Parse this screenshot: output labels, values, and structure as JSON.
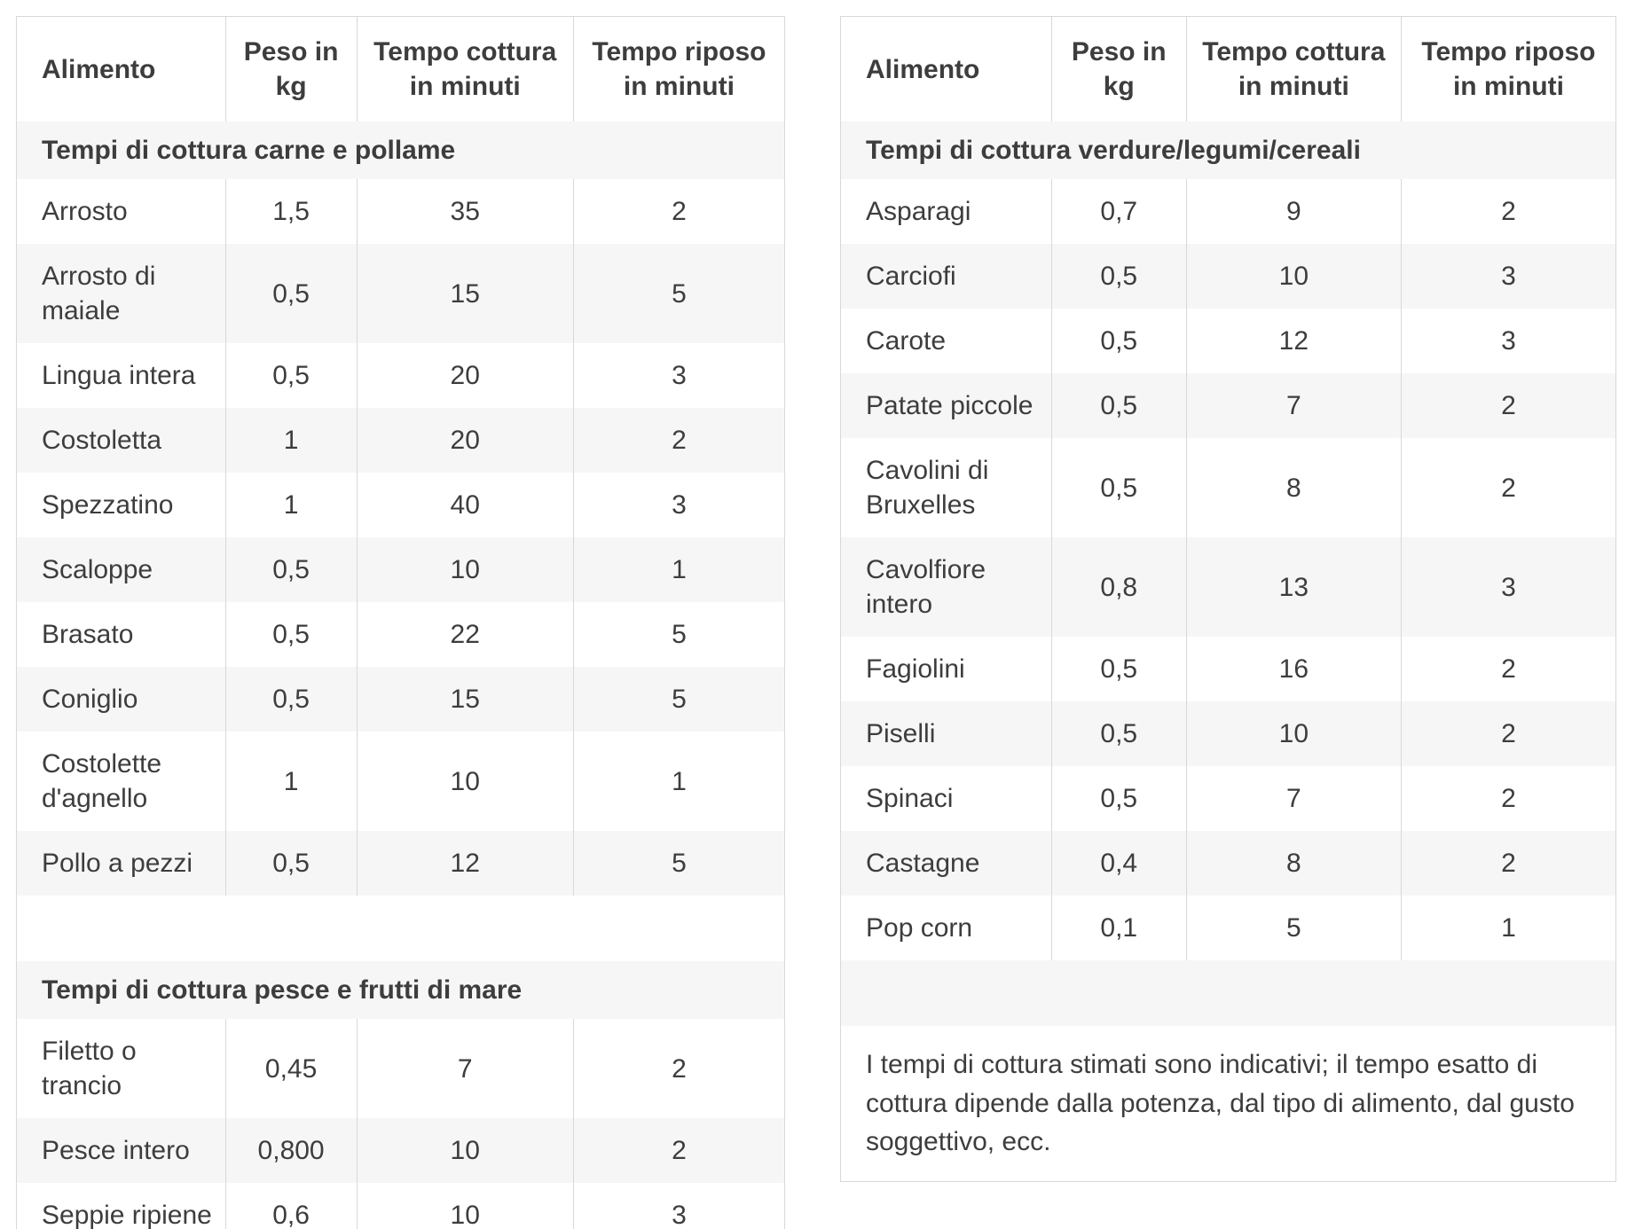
{
  "colors": {
    "text": "#3d3d3d",
    "border": "#d8d8d8",
    "row_alt_bg": "#f6f6f6",
    "page_bg": "#ffffff"
  },
  "tables": [
    {
      "title": "meat-and-fish-table",
      "columns": [
        "Alimento",
        "Peso in kg",
        "Tempo cottura in minuti",
        "Tempo riposo in minuti"
      ],
      "sections": [
        {
          "title": "Tempi di cottura carne e pollame",
          "rows": [
            [
              "Arrosto",
              "1,5",
              "35",
              "2"
            ],
            [
              "Arrosto di maiale",
              "0,5",
              "15",
              "5"
            ],
            [
              "Lingua intera",
              "0,5",
              "20",
              "3"
            ],
            [
              "Costoletta",
              "1",
              "20",
              "2"
            ],
            [
              "Spezzatino",
              "1",
              "40",
              "3"
            ],
            [
              "Scaloppe",
              "0,5",
              "10",
              "1"
            ],
            [
              "Brasato",
              "0,5",
              "22",
              "5"
            ],
            [
              "Coniglio",
              "0,5",
              "15",
              "5"
            ],
            [
              "Costolette d'agnello",
              "1",
              "10",
              "1"
            ],
            [
              "Pollo a pezzi",
              "0,5",
              "12",
              "5"
            ]
          ]
        },
        {
          "title": "Tempi di cottura pesce e frutti di mare",
          "rows": [
            [
              "Filetto o trancio",
              "0,45",
              "7",
              "2"
            ],
            [
              "Pesce intero",
              "0,800",
              "10",
              "2"
            ],
            [
              "Seppie ripiene",
              "0,6",
              "10",
              "3"
            ]
          ]
        }
      ],
      "footnote": null
    },
    {
      "title": "vegetables-legumes-cereals-table",
      "columns": [
        "Alimento",
        "Peso in kg",
        "Tempo cottura in minuti",
        "Tempo riposo in minuti"
      ],
      "sections": [
        {
          "title": "Tempi di cottura verdure/legumi/cereali",
          "rows": [
            [
              "Asparagi",
              "0,7",
              "9",
              "2"
            ],
            [
              "Carciofi",
              "0,5",
              "10",
              "3"
            ],
            [
              "Carote",
              "0,5",
              "12",
              "3"
            ],
            [
              "Patate piccole",
              "0,5",
              "7",
              "2"
            ],
            [
              "Cavolini di Bruxelles",
              "0,5",
              "8",
              "2"
            ],
            [
              "Cavolfiore intero",
              "0,8",
              "13",
              "3"
            ],
            [
              "Fagiolini",
              "0,5",
              "16",
              "2"
            ],
            [
              "Piselli",
              "0,5",
              "10",
              "2"
            ],
            [
              "Spinaci",
              "0,5",
              "7",
              "2"
            ],
            [
              "Castagne",
              "0,4",
              "8",
              "2"
            ],
            [
              "Pop corn",
              "0,1",
              "5",
              "1"
            ]
          ]
        }
      ],
      "footnote": "I tempi di cottura stimati sono indicativi; il tempo esatto di cottura dipende dalla potenza, dal tipo di alimento, dal gusto soggettivo, ecc."
    }
  ]
}
